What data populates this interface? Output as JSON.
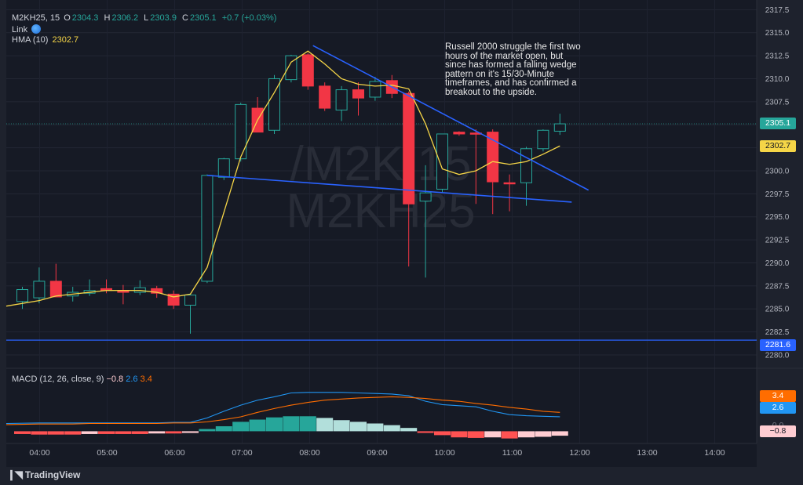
{
  "header": {
    "symbol": "M2KH25, 15",
    "ohlc": [
      {
        "label": "O",
        "value": "2304.3"
      },
      {
        "label": "H",
        "value": "2306.2"
      },
      {
        "label": "L",
        "value": "2303.9"
      },
      {
        "label": "C",
        "value": "2305.1"
      }
    ],
    "change": "+0.7 (+0.03%)",
    "link_label": "Link",
    "hma_label": "HMA (10)",
    "hma_value": "2302.7"
  },
  "watermark": [
    "/M2K,15",
    "M2KH25"
  ],
  "annotation": "Russell 2000 struggle the first two hours of the market open, but since has formed a falling wedge pattern on it's 15/30-Minute timeframes, and has confirmed a breakout to the upside.",
  "price_tags": {
    "last": "2305.1",
    "hma": "2302.7",
    "line": "2281.6",
    "macd_signal": "3.4",
    "macd_line": "2.6",
    "macd_zero": "0.0",
    "macd_hist": "−0.8"
  },
  "macd": {
    "label": "MACD (12, 26, close, 9)",
    "hist": "−0.8",
    "macd": "2.6",
    "signal": "3.4"
  },
  "brand": "TradingView",
  "colors": {
    "up": "#26a69a",
    "down": "#f23645",
    "hma": "#f5d547",
    "trend": "#2962ff",
    "macd_line": "#2196f3",
    "signal_line": "#ff6d00"
  },
  "chart_data": {
    "type": "candlestick",
    "interval": "15",
    "y_axis_ticks": [
      "2317.5",
      "2315.0",
      "2312.5",
      "2310.0",
      "2307.5",
      "2305.0",
      "2302.5",
      "2300.0",
      "2297.5",
      "2295.0",
      "2292.5",
      "2290.0",
      "2287.5",
      "2285.0",
      "2282.5",
      "2280.0"
    ],
    "ylim": [
      2279.4,
      2317.7
    ],
    "x_ticks": [
      "04:00",
      "05:00",
      "06:00",
      "07:00",
      "08:00",
      "09:00",
      "10:00",
      "11:00",
      "12:00",
      "13:00",
      "14:00"
    ],
    "candles": [
      {
        "o": 2285.8,
        "h": 2287.4,
        "l": 2285.0,
        "c": 2287.1
      },
      {
        "o": 2286.2,
        "h": 2289.5,
        "l": 2285.6,
        "c": 2288.0
      },
      {
        "o": 2288.0,
        "h": 2289.9,
        "l": 2286.4,
        "c": 2286.3
      },
      {
        "o": 2286.4,
        "h": 2287.4,
        "l": 2285.8,
        "c": 2286.8
      },
      {
        "o": 2286.7,
        "h": 2288.2,
        "l": 2286.4,
        "c": 2287.0
      },
      {
        "o": 2287.2,
        "h": 2288.2,
        "l": 2286.7,
        "c": 2287.0
      },
      {
        "o": 2287.0,
        "h": 2287.6,
        "l": 2285.5,
        "c": 2286.8
      },
      {
        "o": 2286.8,
        "h": 2288.1,
        "l": 2286.5,
        "c": 2287.3
      },
      {
        "o": 2287.2,
        "h": 2287.5,
        "l": 2286.2,
        "c": 2286.7
      },
      {
        "o": 2286.6,
        "h": 2287.0,
        "l": 2285.0,
        "c": 2285.4
      },
      {
        "o": 2285.4,
        "h": 2286.6,
        "l": 2282.3,
        "c": 2286.5
      },
      {
        "o": 2288.0,
        "h": 2299.6,
        "l": 2287.8,
        "c": 2299.5
      },
      {
        "o": 2299.3,
        "h": 2301.4,
        "l": 2299.0,
        "c": 2301.3
      },
      {
        "o": 2301.3,
        "h": 2307.4,
        "l": 2301.0,
        "c": 2307.2
      },
      {
        "o": 2306.8,
        "h": 2308.0,
        "l": 2304.2,
        "c": 2304.2
      },
      {
        "o": 2304.4,
        "h": 2310.4,
        "l": 2304.0,
        "c": 2310.0
      },
      {
        "o": 2309.9,
        "h": 2312.6,
        "l": 2309.6,
        "c": 2312.5
      },
      {
        "o": 2312.6,
        "h": 2312.8,
        "l": 2308.8,
        "c": 2309.2
      },
      {
        "o": 2309.2,
        "h": 2309.6,
        "l": 2306.5,
        "c": 2306.8
      },
      {
        "o": 2306.6,
        "h": 2309.2,
        "l": 2305.4,
        "c": 2308.8
      },
      {
        "o": 2308.8,
        "h": 2309.6,
        "l": 2306.0,
        "c": 2307.9
      },
      {
        "o": 2308.0,
        "h": 2310.2,
        "l": 2307.6,
        "c": 2309.7
      },
      {
        "o": 2309.8,
        "h": 2310.4,
        "l": 2307.9,
        "c": 2308.4
      },
      {
        "o": 2308.4,
        "h": 2308.6,
        "l": 2289.6,
        "c": 2296.4
      },
      {
        "o": 2296.7,
        "h": 2300.6,
        "l": 2288.4,
        "c": 2297.6
      },
      {
        "o": 2298.0,
        "h": 2304.0,
        "l": 2297.6,
        "c": 2304.0
      },
      {
        "o": 2304.2,
        "h": 2304.3,
        "l": 2303.8,
        "c": 2304.0
      },
      {
        "o": 2304.1,
        "h": 2304.5,
        "l": 2296.4,
        "c": 2304.0
      },
      {
        "o": 2304.2,
        "h": 2304.5,
        "l": 2295.3,
        "c": 2298.8
      },
      {
        "o": 2298.7,
        "h": 2299.6,
        "l": 2295.6,
        "c": 2298.6
      },
      {
        "o": 2298.7,
        "h": 2302.6,
        "l": 2296.2,
        "c": 2302.4
      },
      {
        "o": 2302.4,
        "h": 2304.5,
        "l": 2302.1,
        "c": 2304.4
      },
      {
        "o": 2304.3,
        "h": 2306.2,
        "l": 2303.9,
        "c": 2305.1
      }
    ],
    "hma": [
      2285.3,
      2285.9,
      2286.4,
      2286.6,
      2286.8,
      2287.0,
      2287.0,
      2287.0,
      2286.8,
      2286.3,
      2286.6,
      2289.5,
      2295.5,
      2301.5,
      2305.5,
      2308.5,
      2311.8,
      2313.0,
      2311.6,
      2310.0,
      2309.4,
      2309.2,
      2309.3,
      2308.9,
      2305.1,
      2300.2,
      2299.6,
      2300.0,
      2301.0,
      2300.7,
      2301.0,
      2301.8,
      2302.7
    ],
    "trendlines": [
      {
        "from": {
          "x": 17.3,
          "y": 2313.6
        },
        "to": {
          "x": 33.7,
          "y": 2297.9
        }
      },
      {
        "from": {
          "x": 11.0,
          "y": 2299.5
        },
        "to": {
          "x": 32.7,
          "y": 2296.6
        }
      }
    ],
    "horizontal_line": 2281.6,
    "last_price_line": 2305.1,
    "macd_panel": {
      "histogram": [
        -0.5,
        -0.6,
        -0.6,
        -0.6,
        -0.5,
        -0.5,
        -0.5,
        -0.5,
        -0.4,
        -0.4,
        -0.3,
        0.4,
        0.9,
        1.7,
        2.1,
        2.5,
        2.7,
        2.7,
        2.4,
        2.0,
        1.7,
        1.4,
        1.1,
        0.6,
        -0.3,
        -0.7,
        -1.1,
        -1.2,
        -1.1,
        -1.3,
        -1.1,
        -1.0,
        -0.8
      ],
      "macd": [
        1.4,
        1.5,
        1.5,
        1.5,
        1.5,
        1.5,
        1.5,
        1.5,
        1.5,
        1.6,
        1.6,
        2.4,
        3.6,
        4.7,
        5.6,
        6.2,
        6.9,
        7.0,
        7.0,
        7.0,
        6.9,
        6.8,
        6.7,
        6.4,
        5.4,
        4.8,
        4.6,
        4.4,
        3.6,
        3.0,
        2.8,
        2.7,
        2.6
      ],
      "signal": [
        1.2,
        1.3,
        1.3,
        1.3,
        1.4,
        1.4,
        1.4,
        1.4,
        1.4,
        1.5,
        1.5,
        1.7,
        2.1,
        2.6,
        3.4,
        4.1,
        4.7,
        5.2,
        5.6,
        5.8,
        6.0,
        6.1,
        6.2,
        6.1,
        5.9,
        5.6,
        5.4,
        5.0,
        4.7,
        4.3,
        4.0,
        3.6,
        3.4
      ],
      "ylim": [
        -2.2,
        10.5
      ]
    }
  }
}
